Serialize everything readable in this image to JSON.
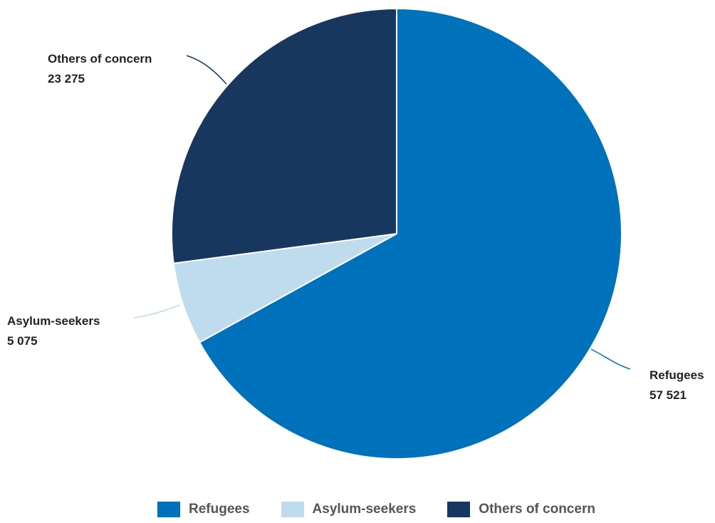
{
  "chart_data": {
    "type": "pie",
    "title": "",
    "slices": [
      {
        "name": "Refugees",
        "value": 57521,
        "value_label": "57 521",
        "color": "#0072BC"
      },
      {
        "name": "Asylum-seekers",
        "value": 5075,
        "value_label": "5 075",
        "color": "#BFDCEE"
      },
      {
        "name": "Others of concern",
        "value": 23275,
        "value_label": "23 275",
        "color": "#18375F"
      }
    ],
    "legend_position": "bottom",
    "start_angle": "12 o'clock, clockwise"
  },
  "legend": {
    "items": [
      {
        "label": "Refugees",
        "color": "#0072BC"
      },
      {
        "label": "Asylum-seekers",
        "color": "#BFDCEE"
      },
      {
        "label": "Others of concern",
        "color": "#18375F"
      }
    ]
  }
}
